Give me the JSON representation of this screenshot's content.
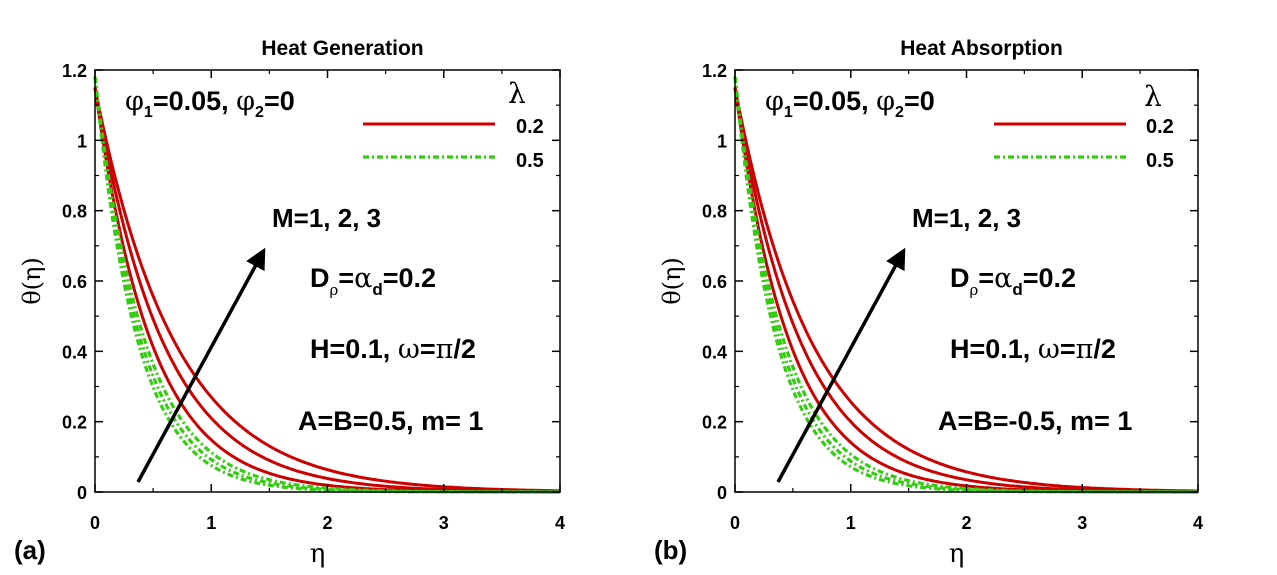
{
  "chart_data": [
    {
      "type": "line",
      "panel_label": "(a)",
      "title": "Heat Generation",
      "xlabel": "η",
      "ylabel": "θ(η)",
      "xlim": [
        0,
        4
      ],
      "ylim": [
        0,
        1.2
      ],
      "x_ticks": [
        "0",
        "1",
        "2",
        "3",
        "4"
      ],
      "y_ticks": [
        "0",
        "0.2",
        "0.4",
        "0.6",
        "0.8",
        "1",
        "1.2"
      ],
      "legend": {
        "title": "λ",
        "position": "top-right",
        "entries": [
          "0.2",
          "0.5"
        ]
      },
      "annotations": {
        "phi": {
          "p1": "φ",
          "s1": "1",
          "v1": "=0.05, ",
          "p2": "φ",
          "s2": "2",
          "v2": "=0"
        },
        "arrow_label": "M=1, 2, 3",
        "drho": {
          "D": "D",
          "rho": "ρ",
          "eq": "=",
          "alpha": "α",
          "d": "d",
          "val": "=0.2"
        },
        "hw": {
          "h": "H=0.1, ",
          "omega": "ω",
          "rest": "=",
          "pi": "π",
          "tail": "/2"
        },
        "ab": "A=B=0.5, m= 1"
      },
      "series": [
        {
          "name": "0.2",
          "color": "#cc0000",
          "style": "solid",
          "group": "M=1",
          "y0": 1.15,
          "k": 2.05
        },
        {
          "name": "0.2",
          "color": "#cc0000",
          "style": "solid",
          "group": "M=2",
          "y0": 1.15,
          "k": 1.7
        },
        {
          "name": "0.2",
          "color": "#cc0000",
          "style": "solid",
          "group": "M=3",
          "y0": 1.15,
          "k": 1.45
        },
        {
          "name": "0.5",
          "color": "#33cc11",
          "style": "dashdot",
          "group": "M=1",
          "y0": 1.18,
          "k": 2.75
        },
        {
          "name": "0.5",
          "color": "#33cc11",
          "style": "dashdot",
          "group": "M=2",
          "y0": 1.18,
          "k": 2.55
        },
        {
          "name": "0.5",
          "color": "#33cc11",
          "style": "dashdot",
          "group": "M=3",
          "y0": 1.18,
          "k": 2.35
        }
      ]
    },
    {
      "type": "line",
      "panel_label": "(b)",
      "title": "Heat Absorption",
      "xlabel": "η",
      "ylabel": "θ(η)",
      "xlim": [
        0,
        4
      ],
      "ylim": [
        0,
        1.2
      ],
      "x_ticks": [
        "0",
        "1",
        "2",
        "3",
        "4"
      ],
      "y_ticks": [
        "0",
        "0.2",
        "0.4",
        "0.6",
        "0.8",
        "1",
        "1.2"
      ],
      "legend": {
        "title": "λ",
        "position": "top-right",
        "entries": [
          "0.2",
          "0.5"
        ]
      },
      "annotations": {
        "phi": {
          "p1": "φ",
          "s1": "1",
          "v1": "=0.05, ",
          "p2": "φ",
          "s2": "2",
          "v2": "=0"
        },
        "arrow_label": "M=1, 2, 3",
        "drho": {
          "D": "D",
          "rho": "ρ",
          "eq": "=",
          "alpha": "α",
          "d": "d",
          "val": "=0.2"
        },
        "hw": {
          "h": "H=0.1, ",
          "omega": "ω",
          "rest": "=",
          "pi": "π",
          "tail": "/2"
        },
        "ab": "A=B=-0.5, m= 1"
      },
      "series": [
        {
          "name": "0.2",
          "color": "#cc0000",
          "style": "solid",
          "group": "M=1",
          "y0": 1.15,
          "k": 2.1
        },
        {
          "name": "0.2",
          "color": "#cc0000",
          "style": "solid",
          "group": "M=2",
          "y0": 1.15,
          "k": 1.75
        },
        {
          "name": "0.2",
          "color": "#cc0000",
          "style": "solid",
          "group": "M=3",
          "y0": 1.15,
          "k": 1.5
        },
        {
          "name": "0.5",
          "color": "#33cc11",
          "style": "dashdot",
          "group": "M=1",
          "y0": 1.18,
          "k": 2.8
        },
        {
          "name": "0.5",
          "color": "#33cc11",
          "style": "dashdot",
          "group": "M=2",
          "y0": 1.18,
          "k": 2.6
        },
        {
          "name": "0.5",
          "color": "#33cc11",
          "style": "dashdot",
          "group": "M=3",
          "y0": 1.18,
          "k": 2.4
        }
      ]
    }
  ]
}
